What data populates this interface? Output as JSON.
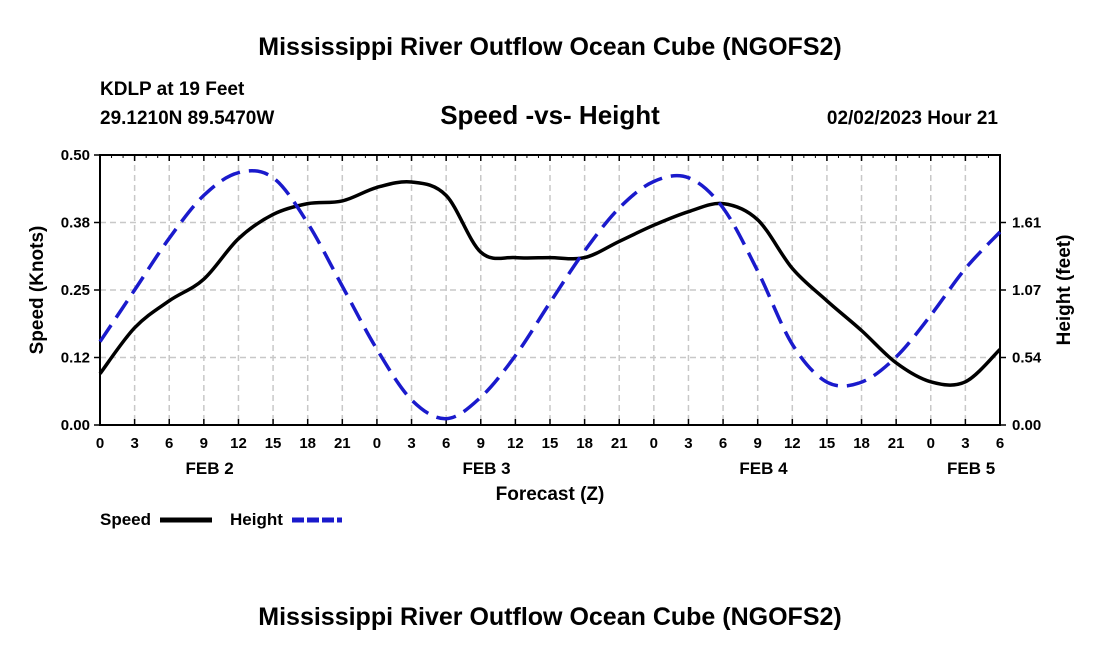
{
  "title": "Mississippi River Outflow Ocean Cube (NGOFS2)",
  "footer_title": "Mississippi River Outflow Ocean Cube (NGOFS2)",
  "station": {
    "name": "KDLP at 19 Feet",
    "coords": "29.1210N  89.5470W"
  },
  "datetime": "02/02/2023 Hour 21",
  "colors": {
    "speed": "#000000",
    "height": "#1a1acc",
    "grid": "#c8c8c8"
  },
  "chart_data": {
    "type": "line",
    "title": "Speed -vs- Height",
    "xlabel": "Forecast (Z)",
    "ylabel_left": "Speed (Knots)",
    "ylabel_right": "Height (feet)",
    "x_range_hours": [
      0,
      78
    ],
    "x_tick_step_hours": 3,
    "x_tick_labels": [
      "0",
      "3",
      "6",
      "9",
      "12",
      "15",
      "18",
      "21",
      "0",
      "3",
      "6",
      "9",
      "12",
      "15",
      "18",
      "21",
      "0",
      "3",
      "6",
      "9",
      "12",
      "15",
      "18",
      "21",
      "0",
      "3",
      "6"
    ],
    "day_labels": [
      {
        "label": "FEB 2",
        "hour": 9.5
      },
      {
        "label": "FEB 3",
        "hour": 33.5
      },
      {
        "label": "FEB 4",
        "hour": 57.5
      },
      {
        "label": "FEB 5",
        "hour": 75.5
      }
    ],
    "ylim_left": [
      0,
      0.5
    ],
    "left_ticks": [
      {
        "value": 0,
        "label": "0.00"
      },
      {
        "value": 0.125,
        "label": "0.12"
      },
      {
        "value": 0.25,
        "label": "0.25"
      },
      {
        "value": 0.375,
        "label": "0.38"
      },
      {
        "value": 0.5,
        "label": "0.50"
      }
    ],
    "ylim_right": [
      0,
      2.14
    ],
    "right_ticks": [
      {
        "value": 0,
        "label": "0.00"
      },
      {
        "value": 0.535,
        "label": "0.54"
      },
      {
        "value": 1.07,
        "label": "1.07"
      },
      {
        "value": 1.605,
        "label": "1.61"
      }
    ],
    "grid": true,
    "series": [
      {
        "name": "Speed",
        "axis": "left",
        "style": "solid",
        "x": [
          0,
          3,
          6,
          9,
          12,
          15,
          18,
          21,
          24,
          27,
          30,
          33,
          36,
          39,
          42,
          45,
          48,
          51,
          54,
          57,
          60,
          63,
          66,
          69,
          72,
          75,
          78
        ],
        "values": [
          0.095,
          0.18,
          0.23,
          0.27,
          0.345,
          0.39,
          0.41,
          0.415,
          0.44,
          0.45,
          0.425,
          0.32,
          0.31,
          0.31,
          0.31,
          0.34,
          0.37,
          0.395,
          0.41,
          0.38,
          0.29,
          0.23,
          0.175,
          0.115,
          0.08,
          0.08,
          0.14
        ]
      },
      {
        "name": "Height",
        "axis": "right",
        "style": "dashed",
        "x": [
          0,
          3,
          6,
          9,
          12,
          15,
          18,
          21,
          24,
          27,
          30,
          33,
          36,
          39,
          42,
          45,
          48,
          51,
          54,
          57,
          60,
          63,
          66,
          69,
          72,
          75,
          78
        ],
        "values": [
          0.66,
          1.07,
          1.48,
          1.82,
          2.0,
          1.96,
          1.6,
          1.1,
          0.6,
          0.2,
          0.05,
          0.22,
          0.55,
          0.97,
          1.38,
          1.72,
          1.93,
          1.96,
          1.72,
          1.22,
          0.64,
          0.34,
          0.34,
          0.54,
          0.87,
          1.24,
          1.53
        ]
      }
    ],
    "legend": [
      {
        "label": "Speed",
        "style": "solid"
      },
      {
        "label": "Height",
        "style": "dashed"
      }
    ]
  }
}
